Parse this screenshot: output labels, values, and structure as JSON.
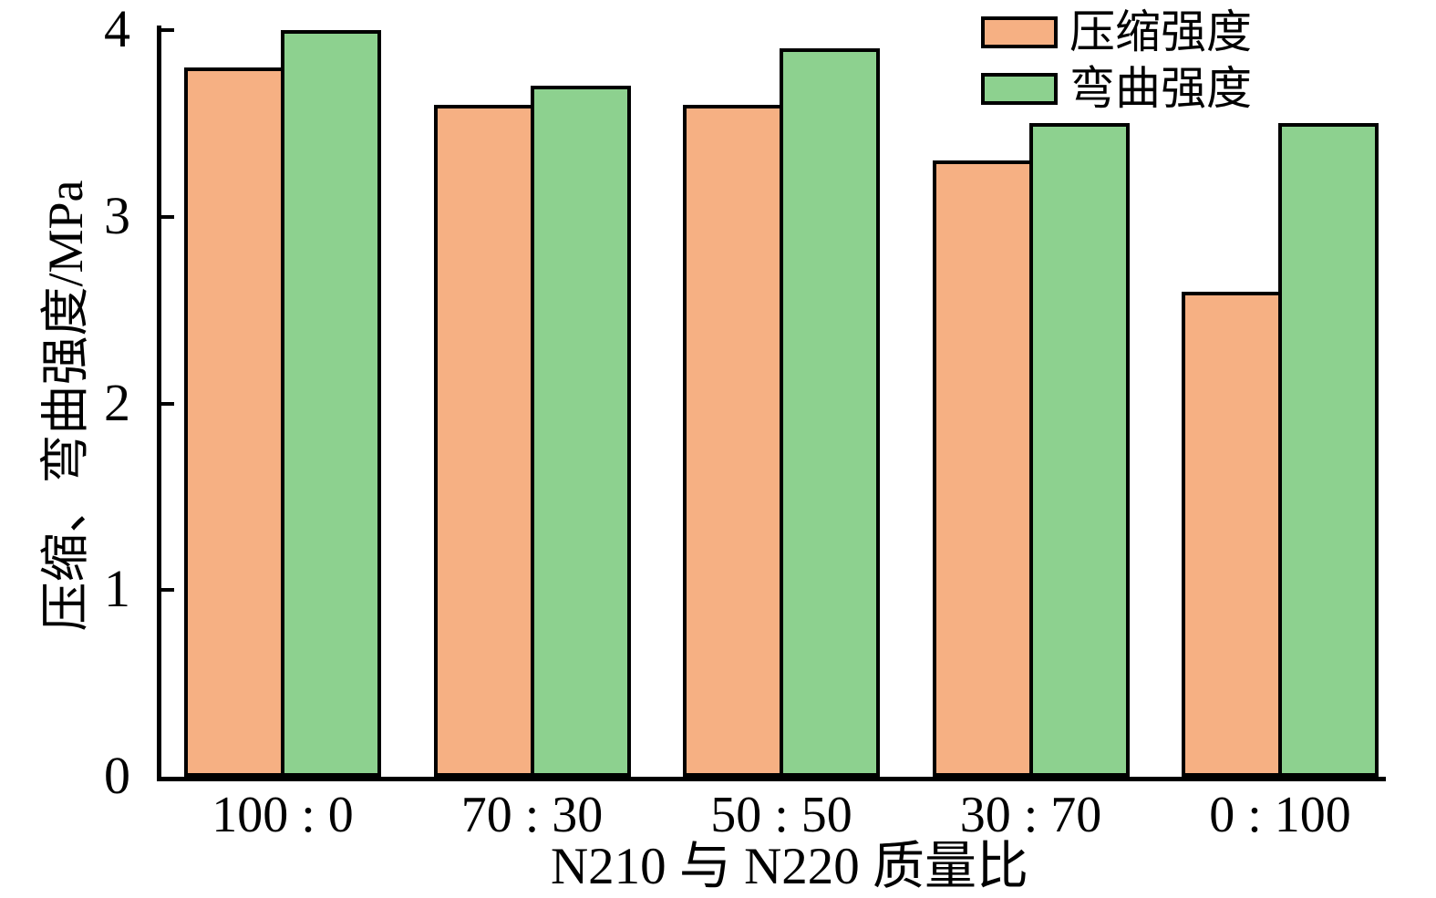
{
  "chart_data": {
    "type": "bar",
    "title": "",
    "categories": [
      "100 : 0",
      "70 : 30",
      "50 : 50",
      "30 : 70",
      "0 : 100"
    ],
    "series": [
      {
        "name": "压缩强度",
        "color": "#F6B083",
        "values": [
          3.8,
          3.6,
          3.6,
          3.3,
          2.6
        ]
      },
      {
        "name": "弯曲强度",
        "color": "#8DD18F",
        "values": [
          4.0,
          3.7,
          3.9,
          3.5,
          3.5
        ]
      }
    ],
    "xlabel": "N210 与 N220 质量比",
    "ylabel": "压缩、弯曲强度/MPa",
    "ylim": [
      0,
      4
    ],
    "yticks": [
      "0",
      "1",
      "2",
      "3",
      "4"
    ],
    "grid": false,
    "legend_position": "top-right",
    "bar_edge_color": "#000000",
    "axis_color": "#000000",
    "background": "#FFFFFF"
  }
}
